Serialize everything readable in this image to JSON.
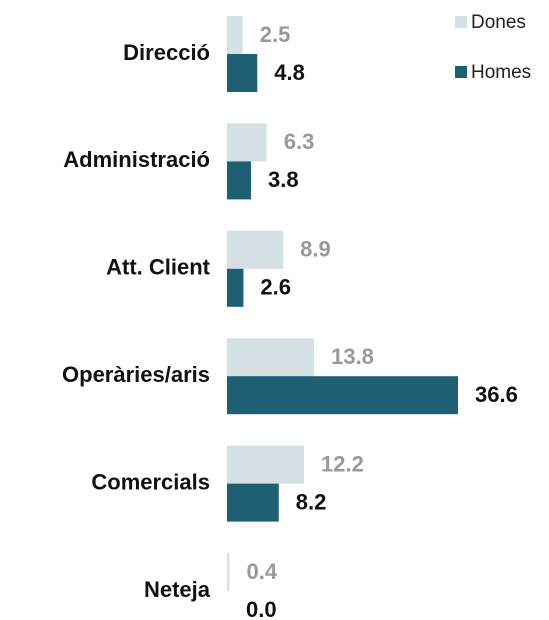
{
  "chart_data": {
    "type": "bar",
    "orientation": "horizontal",
    "categories": [
      "Direcció",
      "Administració",
      "Att. Client",
      "Operàries/aris",
      "Comercials",
      "Neteja"
    ],
    "series": [
      {
        "name": "Dones",
        "color": "#d5e0e5",
        "label_color": "#999999",
        "values": [
          2.5,
          6.3,
          8.9,
          13.8,
          12.2,
          0.4
        ],
        "value_labels": [
          "2.5",
          "6.3",
          "8.9",
          "13.8",
          "12.2",
          "0.4"
        ]
      },
      {
        "name": "Homes",
        "color": "#1e5f74",
        "label_color": "#111111",
        "values": [
          4.8,
          3.8,
          2.6,
          36.6,
          8.2,
          0.0
        ],
        "value_labels": [
          "4.8",
          "3.8",
          "2.6",
          "36.6",
          "8.2",
          "0.0"
        ]
      }
    ],
    "legend": "top-right"
  }
}
